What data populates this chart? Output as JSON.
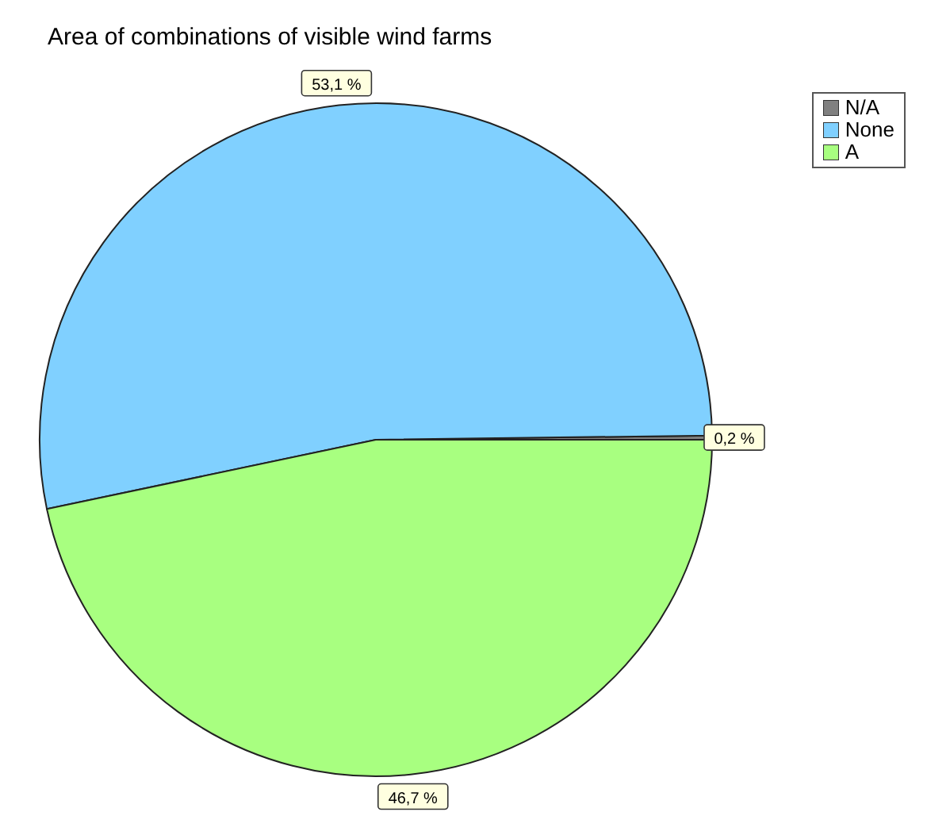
{
  "chart_data": {
    "type": "pie",
    "title": "Area of combinations of visible wind farms",
    "categories": [
      "N/A",
      "None",
      "A"
    ],
    "values": [
      0.2,
      53.1,
      46.7
    ],
    "colors": [
      "#808080",
      "#80d0ff",
      "#a8ff80"
    ],
    "value_labels": [
      "0,2 %",
      "53,1 %",
      "46,7 %"
    ],
    "legend": "top right"
  }
}
